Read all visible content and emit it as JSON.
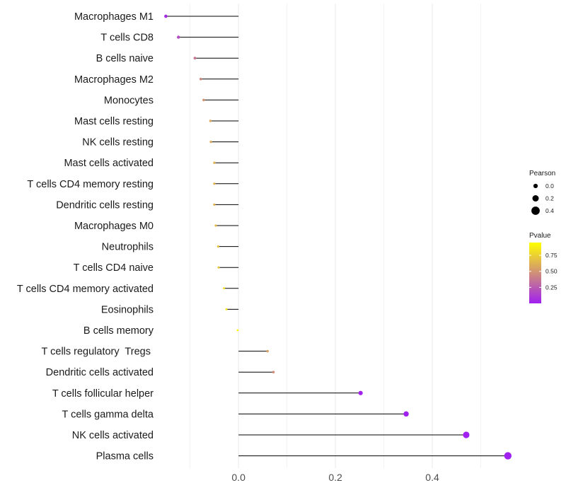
{
  "chart_data": {
    "type": "lollipop",
    "title": "",
    "xlabel": "",
    "ylabel": "",
    "xlim": [
      -0.155,
      0.565
    ],
    "x_ticks": [
      0.0,
      0.2,
      0.4
    ],
    "x_tick_labels": [
      "0.0",
      "0.2",
      "0.4"
    ],
    "grid": true,
    "legend_position": "right",
    "points": [
      {
        "category": "Macrophages M1",
        "pearson": -0.15,
        "pvalue": 0.05
      },
      {
        "category": "T cells CD8",
        "pearson": -0.124,
        "pvalue": 0.18
      },
      {
        "category": "B cells naive",
        "pearson": -0.09,
        "pvalue": 0.38
      },
      {
        "category": "Macrophages M2",
        "pearson": -0.078,
        "pvalue": 0.45
      },
      {
        "category": "Monocytes",
        "pearson": -0.072,
        "pvalue": 0.5
      },
      {
        "category": "Mast cells resting",
        "pearson": -0.058,
        "pvalue": 0.58
      },
      {
        "category": "NK cells resting",
        "pearson": -0.057,
        "pvalue": 0.58
      },
      {
        "category": "Mast cells activated",
        "pearson": -0.05,
        "pvalue": 0.63
      },
      {
        "category": "T cells CD4 memory resting",
        "pearson": -0.05,
        "pvalue": 0.63
      },
      {
        "category": "Dendritic cells resting",
        "pearson": -0.05,
        "pvalue": 0.63
      },
      {
        "category": "Macrophages M0",
        "pearson": -0.047,
        "pvalue": 0.66
      },
      {
        "category": "Neutrophils",
        "pearson": -0.042,
        "pvalue": 0.7
      },
      {
        "category": "T cells CD4 naive",
        "pearson": -0.041,
        "pvalue": 0.71
      },
      {
        "category": "T cells CD4 memory activated",
        "pearson": -0.03,
        "pvalue": 0.82
      },
      {
        "category": "Eosinophils",
        "pearson": -0.025,
        "pvalue": 0.86
      },
      {
        "category": "B cells memory",
        "pearson": -0.002,
        "pvalue": 0.97
      },
      {
        "category": "T cells regulatory  Tregs ",
        "pearson": 0.06,
        "pvalue": 0.55
      },
      {
        "category": "Dendritic cells activated",
        "pearson": 0.072,
        "pvalue": 0.47
      },
      {
        "category": "T cells follicular helper",
        "pearson": 0.252,
        "pvalue": 0.01
      },
      {
        "category": "T cells gamma delta",
        "pearson": 0.346,
        "pvalue": 0.002
      },
      {
        "category": "NK cells activated",
        "pearson": 0.47,
        "pvalue": 0.0005
      },
      {
        "category": "Plasma cells",
        "pearson": 0.556,
        "pvalue": 0.0001
      }
    ],
    "legend": {
      "size_title": "Pearson",
      "size_breaks": [
        0.0,
        0.2,
        0.4
      ],
      "size_labels": [
        "0.0",
        "0.2",
        "0.4"
      ],
      "color_title": "Pvalue",
      "color_breaks": [
        0.25,
        0.5,
        0.75
      ],
      "color_labels": [
        "0.25",
        "0.50",
        "0.75"
      ],
      "color_range": [
        0.0,
        0.95
      ],
      "color_low": "#a020f0",
      "color_high": "#ffff00"
    },
    "colors": {
      "stem": "#000000",
      "gridline": "#ebebeb",
      "tick_text": "#4d4d4d",
      "label_text": "#1a1a1a"
    }
  }
}
